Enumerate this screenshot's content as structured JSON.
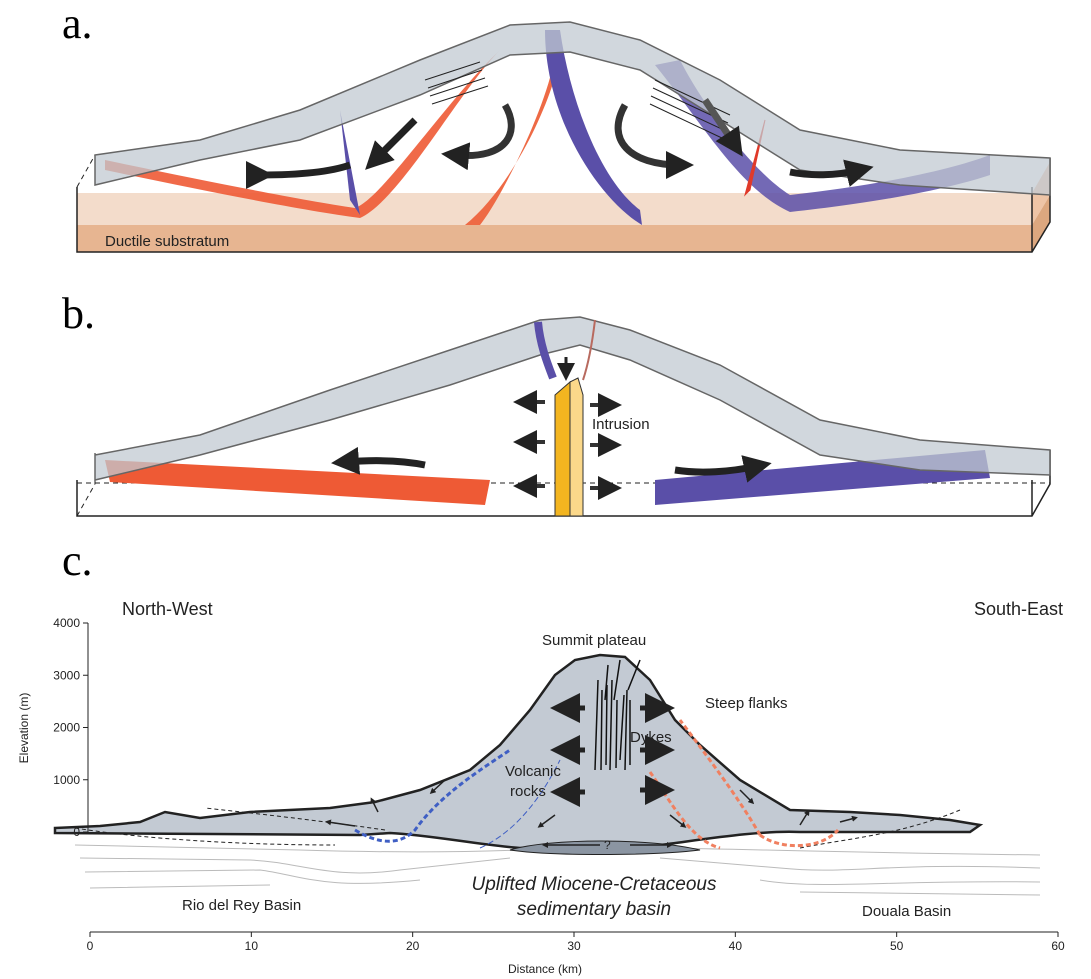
{
  "panel_a": {
    "label": "a.",
    "substratum_label": "Ductile substratum"
  },
  "panel_b": {
    "label": "b.",
    "intrusion_label": "Intrusion"
  },
  "panel_c": {
    "label": "c.",
    "left_direction": "North-West",
    "right_direction": "South-East",
    "y_axis_label": "Elevation (m)",
    "x_axis_label": "Distance (km)",
    "ylim": [
      0,
      4000
    ],
    "yticks": [
      0,
      1000,
      2000,
      3000,
      4000
    ],
    "xlim": [
      0,
      60
    ],
    "xticks": [
      0,
      10,
      20,
      30,
      40,
      50,
      60
    ],
    "summit_label": "Summit plateau",
    "flanks_label": "Steep flanks",
    "dykes_label": "Dykes",
    "volcanic_label": [
      "Volcanic",
      "rocks"
    ],
    "question_label": "?",
    "basin_label": [
      "Uplifted Miocene-Cretaceous",
      "sedimentary basin"
    ],
    "left_basin_label": "Rio del Rey Basin",
    "right_basin_label": "Douala Basin"
  }
}
